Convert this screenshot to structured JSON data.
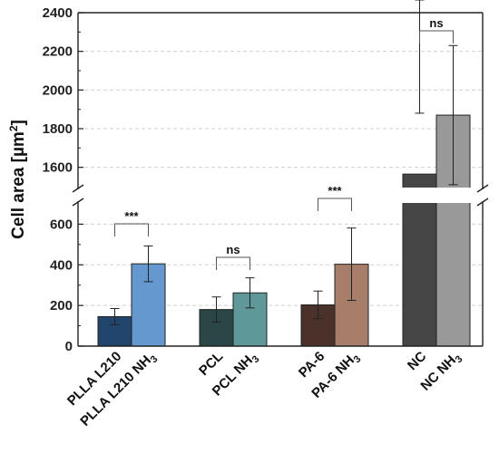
{
  "chart_data": {
    "type": "bar",
    "ylabel": "Cell area [µm²]",
    "ylabel_parts": [
      "Cell area [µm",
      "2",
      "]"
    ],
    "y_break": {
      "lower": [
        0,
        700
      ],
      "upper": [
        1500,
        2400
      ]
    },
    "y_ticks_lower": [
      "0",
      "200",
      "400",
      "600"
    ],
    "y_ticks_upper": [
      "1600",
      "1800",
      "2000",
      "2200",
      "2400"
    ],
    "grid": true,
    "groups": [
      {
        "bars": [
          {
            "label": [
              "PLLA L210",
              ""
            ],
            "value": 145,
            "error": 40,
            "color": "#22456e"
          },
          {
            "label": [
              "PLLA L210 NH",
              "3"
            ],
            "value": 405,
            "error": 88,
            "color": "#6598cf"
          }
        ],
        "significance": "***"
      },
      {
        "bars": [
          {
            "label": [
              "PCL",
              ""
            ],
            "value": 180,
            "error": 62,
            "color": "#2a4646"
          },
          {
            "label": [
              "PCL NH",
              "3"
            ],
            "value": 262,
            "error": 74,
            "color": "#5f9898"
          }
        ],
        "significance": "ns"
      },
      {
        "bars": [
          {
            "label": [
              "PA-6",
              ""
            ],
            "value": 203,
            "error": 68,
            "color": "#4a3129"
          },
          {
            "label": [
              "PA-6 NH",
              "3"
            ],
            "value": 403,
            "error": 178,
            "color": "#a67e69"
          }
        ],
        "significance": "***"
      },
      {
        "bars": [
          {
            "label": [
              "NC",
              ""
            ],
            "value": 1565,
            "error": 315,
            "color": "#464646"
          },
          {
            "label": [
              "NC NH",
              "3"
            ],
            "value": 1870,
            "error": 360,
            "color": "#999999"
          }
        ],
        "significance": "ns"
      }
    ]
  }
}
